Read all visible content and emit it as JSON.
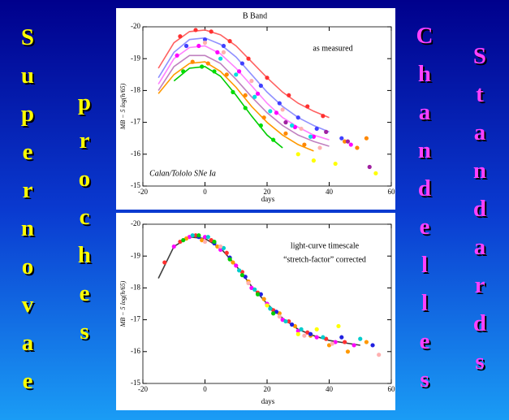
{
  "slide": {
    "words": [
      "Supernovae",
      "proches",
      "Chandelles",
      "Standards"
    ]
  },
  "chart_data": [
    {
      "type": "scatter",
      "title": "B Band",
      "x_label": "days",
      "y_label": "MB − 5 log(h/65)",
      "annotations": [
        "as measured",
        "Calan/Tololo SNe Ia"
      ],
      "xlim": [
        -20,
        60
      ],
      "xticks": [
        -20,
        0,
        20,
        40,
        60
      ],
      "ylim": [
        -20,
        -15
      ],
      "yticks": [
        -20,
        -19,
        -18,
        -17,
        -16,
        -15
      ],
      "y_inverted": true,
      "series": [
        {
          "style": "line",
          "color": "#ff6060",
          "x": [
            -15,
            -10,
            -5,
            0,
            5,
            10,
            15,
            20,
            25,
            30,
            35,
            40
          ],
          "values": [
            -18.7,
            -19.5,
            -19.85,
            -19.9,
            -19.75,
            -19.4,
            -18.9,
            -18.4,
            -17.95,
            -17.6,
            -17.35,
            -17.15
          ]
        },
        {
          "style": "line",
          "color": "#9090ff",
          "x": [
            -15,
            -10,
            -5,
            0,
            5,
            10,
            15,
            20,
            25,
            30,
            35,
            40
          ],
          "values": [
            -18.4,
            -19.2,
            -19.6,
            -19.65,
            -19.45,
            -19.05,
            -18.5,
            -17.95,
            -17.5,
            -17.15,
            -16.9,
            -16.7
          ]
        },
        {
          "style": "line",
          "color": "#ff80ff",
          "x": [
            -15,
            -10,
            -5,
            0,
            5,
            10,
            15,
            20,
            25,
            30,
            35,
            40
          ],
          "values": [
            -18.2,
            -19.0,
            -19.35,
            -19.4,
            -19.15,
            -18.7,
            -18.15,
            -17.6,
            -17.15,
            -16.85,
            -16.6,
            -16.45
          ]
        },
        {
          "style": "line",
          "color": "#c080c0",
          "x": [
            -15,
            -10,
            -5,
            0,
            5,
            10,
            15,
            20,
            25,
            30,
            35,
            40
          ],
          "values": [
            -18.0,
            -18.75,
            -19.1,
            -19.1,
            -18.85,
            -18.35,
            -17.8,
            -17.3,
            -16.9,
            -16.6,
            -16.4,
            -16.25
          ]
        },
        {
          "style": "line",
          "color": "#ff9900",
          "x": [
            -15,
            -10,
            -5,
            0,
            5,
            10,
            15,
            20,
            25,
            30,
            35
          ],
          "values": [
            -17.9,
            -18.5,
            -18.85,
            -18.9,
            -18.6,
            -18.1,
            -17.5,
            -17.0,
            -16.6,
            -16.3,
            -16.1
          ]
        },
        {
          "style": "line",
          "color": "#00cc00",
          "x": [
            -10,
            -5,
            0,
            5,
            10,
            15,
            20,
            25
          ],
          "values": [
            -18.3,
            -18.7,
            -18.75,
            -18.45,
            -17.85,
            -17.2,
            -16.6,
            -16.2
          ]
        },
        {
          "style": "points",
          "color": "#ff3030",
          "x": [
            -8,
            -3,
            2,
            8,
            14,
            20,
            27,
            33,
            38
          ],
          "values": [
            -19.7,
            -19.9,
            -19.85,
            -19.55,
            -19.0,
            -18.4,
            -17.85,
            -17.5,
            -17.2
          ]
        },
        {
          "style": "points",
          "color": "#4040ff",
          "x": [
            -6,
            0,
            6,
            12,
            18,
            24,
            30,
            36,
            44
          ],
          "values": [
            -19.4,
            -19.6,
            -19.4,
            -18.85,
            -18.15,
            -17.6,
            -17.15,
            -16.8,
            -16.5
          ]
        },
        {
          "style": "points",
          "color": "#ff00ff",
          "x": [
            -9,
            -2,
            4,
            11,
            17,
            23,
            29,
            35,
            47
          ],
          "values": [
            -19.1,
            -19.4,
            -19.2,
            -18.6,
            -17.9,
            -17.3,
            -16.85,
            -16.55,
            -16.3
          ]
        },
        {
          "style": "points",
          "color": "#ff8800",
          "x": [
            -4,
            1,
            7,
            13,
            19,
            26,
            32,
            45,
            49,
            52
          ],
          "values": [
            -18.9,
            -18.85,
            -18.5,
            -17.85,
            -17.15,
            -16.65,
            -16.3,
            -16.4,
            -16.2,
            -16.5
          ]
        },
        {
          "style": "points",
          "color": "#00dd00",
          "x": [
            -7,
            -1,
            3,
            9,
            13,
            18,
            22
          ],
          "values": [
            -18.6,
            -18.75,
            -18.6,
            -17.95,
            -17.45,
            -16.9,
            -16.45
          ]
        },
        {
          "style": "points",
          "color": "#00e0e0",
          "x": [
            5,
            10,
            16,
            21,
            28,
            34
          ],
          "values": [
            -19.0,
            -18.5,
            -17.8,
            -17.35,
            -16.9,
            -16.55
          ]
        },
        {
          "style": "points",
          "color": "#ffb0b0",
          "x": [
            0,
            6,
            15,
            25,
            31,
            37
          ],
          "values": [
            -19.5,
            -19.2,
            -18.3,
            -17.4,
            -16.8,
            -16.2
          ]
        },
        {
          "style": "points",
          "color": "#ffff00",
          "x": [
            30,
            35,
            42,
            55
          ],
          "values": [
            -16.0,
            -15.8,
            -15.7,
            -15.4
          ]
        },
        {
          "style": "points",
          "color": "#a020a0",
          "x": [
            26,
            39,
            46,
            53
          ],
          "values": [
            -17.0,
            -16.7,
            -16.4,
            -15.6
          ]
        }
      ]
    },
    {
      "type": "scatter",
      "x_label": "days",
      "y_label": "MB − 5 log(h/65)",
      "annotations": [
        "light-curve timescale",
        "“stretch-factor” corrected"
      ],
      "xlim": [
        -20,
        60
      ],
      "xticks": [
        -20,
        0,
        20,
        40,
        60
      ],
      "ylim": [
        -20,
        -15
      ],
      "yticks": [
        -20,
        -19,
        -18,
        -17,
        -16,
        -15
      ],
      "y_inverted": true,
      "series": [
        {
          "style": "line",
          "color": "#404040",
          "x": [
            -15,
            -10,
            -5,
            0,
            5,
            10,
            15,
            20,
            25,
            30,
            35,
            40,
            50
          ],
          "values": [
            -18.3,
            -19.3,
            -19.6,
            -19.55,
            -19.25,
            -18.7,
            -18.05,
            -17.5,
            -17.05,
            -16.7,
            -16.5,
            -16.35,
            -16.2
          ]
        },
        {
          "style": "points",
          "color": "#ff3030",
          "x": [
            -13,
            -8,
            -3,
            2,
            7,
            12,
            17,
            22,
            27,
            33,
            39,
            45
          ],
          "values": [
            -18.8,
            -19.45,
            -19.65,
            -19.5,
            -19.1,
            -18.5,
            -17.85,
            -17.3,
            -16.95,
            -16.6,
            -16.4,
            -16.3
          ]
        },
        {
          "style": "points",
          "color": "#ff00ff",
          "x": [
            -10,
            -5,
            0,
            5,
            10,
            15,
            20,
            25,
            30,
            36,
            42,
            48
          ],
          "values": [
            -19.3,
            -19.6,
            -19.6,
            -19.2,
            -18.7,
            -18.0,
            -17.5,
            -17.0,
            -16.65,
            -16.45,
            -16.3,
            -16.2
          ]
        },
        {
          "style": "points",
          "color": "#ff9900",
          "x": [
            -6,
            -1,
            4,
            9,
            14,
            19,
            24,
            29,
            34,
            40,
            46,
            52
          ],
          "values": [
            -19.55,
            -19.5,
            -19.3,
            -18.8,
            -18.2,
            -17.65,
            -17.2,
            -16.8,
            -16.5,
            -16.2,
            -16.0,
            -16.3
          ]
        },
        {
          "style": "points",
          "color": "#00cccc",
          "x": [
            -4,
            1,
            6,
            11,
            16,
            21,
            26,
            31,
            38,
            50
          ],
          "values": [
            -19.65,
            -19.6,
            -19.25,
            -18.55,
            -17.95,
            -17.35,
            -16.95,
            -16.7,
            -16.45,
            -16.4
          ]
        },
        {
          "style": "points",
          "color": "#2020e0",
          "x": [
            -2,
            3,
            8,
            13,
            18,
            23,
            28,
            34,
            44,
            54
          ],
          "values": [
            -19.6,
            -19.4,
            -18.95,
            -18.35,
            -17.8,
            -17.25,
            -16.85,
            -16.55,
            -16.45,
            -16.2
          ]
        },
        {
          "style": "points",
          "color": "#00cc00",
          "x": [
            -7,
            -2,
            3,
            8,
            12,
            17,
            22
          ],
          "values": [
            -19.5,
            -19.65,
            -19.45,
            -18.9,
            -18.4,
            -17.8,
            -17.2
          ]
        },
        {
          "style": "points",
          "color": "#ffb0b0",
          "x": [
            0,
            5,
            14,
            24,
            32,
            41,
            56
          ],
          "values": [
            -19.45,
            -19.3,
            -18.15,
            -17.1,
            -16.5,
            -16.25,
            -15.9
          ]
        },
        {
          "style": "points",
          "color": "#ffff00",
          "x": [
            20,
            30,
            36,
            43
          ],
          "values": [
            -17.45,
            -16.55,
            -16.7,
            -16.8
          ]
        }
      ]
    }
  ]
}
